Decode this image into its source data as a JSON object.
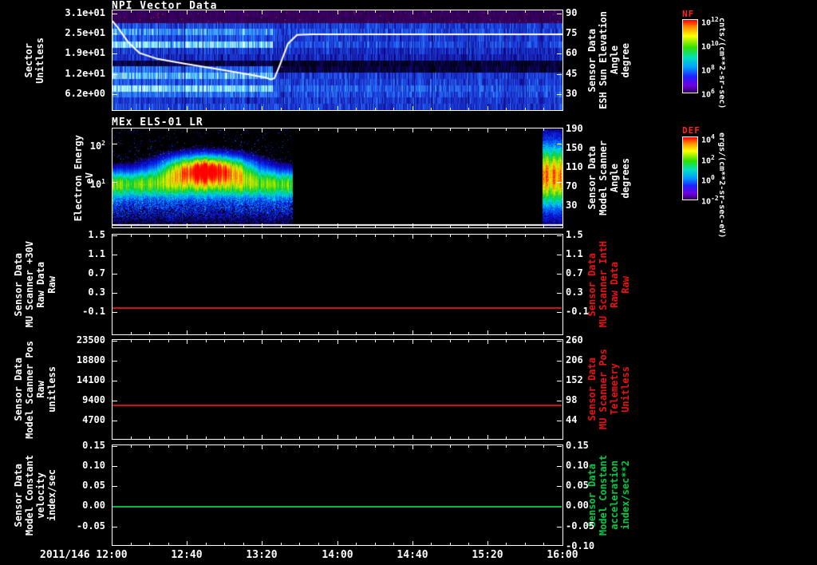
{
  "x_axis": {
    "date": "2011/146",
    "ticks": [
      "12:00",
      "12:40",
      "13:20",
      "14:00",
      "14:40",
      "15:20",
      "16:00"
    ]
  },
  "chart_data": [
    {
      "type": "heatmap",
      "title": "NPI Vector Data",
      "left_axis": {
        "label_lines": [
          "Sector",
          "Unitless"
        ],
        "ticks": [
          "3.1e+01",
          "2.5e+01",
          "1.9e+01",
          "1.2e+01",
          "6.2e+00"
        ],
        "top_frac": 0.039,
        "step_frac": 0.199
      },
      "right_axis": {
        "label_lines": [
          "Sensor Data",
          "ESH Sun Elevation",
          "Angle",
          "degree"
        ],
        "ticks": [
          "90",
          "75",
          "60",
          "45",
          "30"
        ],
        "top_frac": 0.039,
        "step_frac": 0.199,
        "value_top": 93,
        "value_range": 75
      },
      "colorbar": {
        "label": "NF",
        "label_color": "#ff2222",
        "ticks": [
          "10^12",
          "10^10",
          "10^8",
          "10^6"
        ],
        "units": "cnts/(cm**2-sr-sec)"
      },
      "era_split": 0.355,
      "rows": [
        {
          "kind": "purple",
          "a": 0.36,
          "b": 0.33
        },
        {
          "kind": "purple",
          "a": 0.3,
          "b": 0.3
        },
        {
          "kind": "blue",
          "a": 0.55,
          "b": 0.5
        },
        {
          "kind": "blue",
          "a": 0.8,
          "b": 0.55
        },
        {
          "kind": "blue",
          "a": 0.6,
          "b": 0.5
        },
        {
          "kind": "blue",
          "a": 0.95,
          "b": 0.55
        },
        {
          "kind": "blue",
          "a": 0.5,
          "b": 0.45
        },
        {
          "kind": "blue",
          "a": 0.45,
          "b": 0.4
        },
        {
          "kind": "blue",
          "a": 0.12,
          "b": 0.06
        },
        {
          "kind": "blue",
          "a": 0.65,
          "b": 0.1
        },
        {
          "kind": "blue",
          "a": 0.9,
          "b": 0.5
        },
        {
          "kind": "blue",
          "a": 0.6,
          "b": 0.52
        },
        {
          "kind": "blue",
          "a": 0.97,
          "b": 0.6
        },
        {
          "kind": "blue",
          "a": 0.7,
          "b": 0.55
        },
        {
          "kind": "blue",
          "a": 0.48,
          "b": 0.5
        },
        {
          "kind": "blue",
          "a": 0.55,
          "b": 0.5
        }
      ],
      "overlay_line": {
        "name": "ESH Sun Elevation Angle",
        "color": "#ffffff",
        "points": [
          [
            0,
            85
          ],
          [
            0.012,
            80
          ],
          [
            0.035,
            69
          ],
          [
            0.06,
            61
          ],
          [
            0.1,
            56.5
          ],
          [
            0.16,
            53
          ],
          [
            0.23,
            49
          ],
          [
            0.3,
            45
          ],
          [
            0.34,
            42.5
          ],
          [
            0.352,
            41
          ],
          [
            0.36,
            42
          ],
          [
            0.372,
            52
          ],
          [
            0.39,
            68
          ],
          [
            0.41,
            74.5
          ],
          [
            0.44,
            75
          ],
          [
            1,
            75
          ]
        ]
      }
    },
    {
      "type": "heatmap",
      "title": "MEx ELS-01 LR",
      "left_axis": {
        "label_lines": [
          "Electron Energy",
          "eV"
        ],
        "ticks": [
          "10^2",
          "10^1"
        ],
        "scale": "log",
        "top_frac": 0.159,
        "step_frac": 0.381
      },
      "right_axis": {
        "label_lines": [
          "Sensor Data",
          "Model Scanner",
          "Angle",
          "degrees"
        ],
        "ticks": [
          "190",
          "150",
          "110",
          "70",
          "30"
        ],
        "top_frac": 0.016,
        "step_frac": 0.19
      },
      "colorbar": {
        "label": "DEF",
        "label_color": "#ff2222",
        "ticks": [
          "10^4",
          "10^2",
          "10^0",
          "10^-2"
        ],
        "units": "ergs/(cm**2-sr-sec-eV)"
      },
      "regions": [
        {
          "t0": 0,
          "t1": 0.4
        },
        {
          "t0": 0.955,
          "t1": 1.0
        }
      ],
      "band": {
        "center": 0.56,
        "width": 0.14,
        "intensity": 0.62
      },
      "blob": {
        "t": 0.21,
        "t_width": 0.09,
        "center": 0.4,
        "width": 0.13,
        "intensity": 1.0
      },
      "strip": {
        "center": 0.48,
        "width": 0.3,
        "intensity": 0.85
      },
      "baseline_line": {
        "color": "#ffffff",
        "y_frac": 0.965
      }
    },
    {
      "type": "line",
      "left_axis": {
        "label_lines": [
          "Sensor Data",
          "MU Scanner +30V",
          "Raw Data",
          "Raw"
        ],
        "ticks": [
          "1.5",
          "1.1",
          "0.7",
          "0.3",
          "-0.1"
        ],
        "tick_values": [
          1.5,
          1.1,
          0.7,
          0.3,
          -0.1
        ],
        "tick_step": 0.4,
        "top_frac": 0.016,
        "step_frac": 0.189
      },
      "right_axis": {
        "label_lines": [
          "Sensor Data",
          "MU Scanner IntH",
          "Raw Data",
          "Raw"
        ],
        "label_color": "#ee1111",
        "ticks": [
          "1.5",
          "1.1",
          "0.7",
          "0.3",
          "-0.1"
        ],
        "top_frac": 0.016,
        "step_frac": 0.189
      },
      "lines": [
        {
          "name": "mu-scanner-30v-raw",
          "value": 0.0,
          "color": "#d01010"
        }
      ]
    },
    {
      "type": "line",
      "left_axis": {
        "label_lines": [
          "Sensor Data",
          "Model Scanner Pos",
          "Raw",
          "unitless"
        ],
        "ticks": [
          "23500",
          "18800",
          "14100",
          "9400",
          "4700"
        ],
        "tick_values": [
          23500,
          18800,
          14100,
          9400,
          4700
        ],
        "tick_step": 4700,
        "top_frac": 0.016,
        "step_frac": 0.198
      },
      "right_axis": {
        "label_lines": [
          "Sensor Data",
          "MU Scanner Pos",
          "Telemetry",
          "Unitless"
        ],
        "label_color": "#ee1111",
        "ticks": [
          "260",
          "206",
          "152",
          "98",
          "44"
        ],
        "top_frac": 0.016,
        "step_frac": 0.198
      },
      "lines": [
        {
          "name": "model-scanner-pos-raw",
          "value": 8500,
          "color": "#d01010"
        }
      ]
    },
    {
      "type": "line",
      "left_axis": {
        "label_lines": [
          "Sensor Data",
          "Model Constant",
          "velocity",
          "index/sec"
        ],
        "ticks": [
          "0.15",
          "0.10",
          "0.05",
          "0.00",
          "-0.05"
        ],
        "tick_values": [
          0.15,
          0.1,
          0.05,
          0.0,
          -0.05
        ],
        "tick_step": 0.05,
        "top_frac": 0.016,
        "step_frac": 0.198
      },
      "right_axis": {
        "label_lines": [
          "Sensor Data",
          "Model Constant",
          "acceleration",
          "index/sec**2"
        ],
        "label_color": "#00cc44",
        "ticks": [
          "0.15",
          "0.10",
          "0.05",
          "0.00",
          "-0.05",
          "-0.10"
        ],
        "top_frac": 0.016,
        "step_frac": 0.198
      },
      "lines": [
        {
          "name": "model-constant-velocity",
          "value": 0.0,
          "color": "#00bb44"
        }
      ]
    }
  ]
}
